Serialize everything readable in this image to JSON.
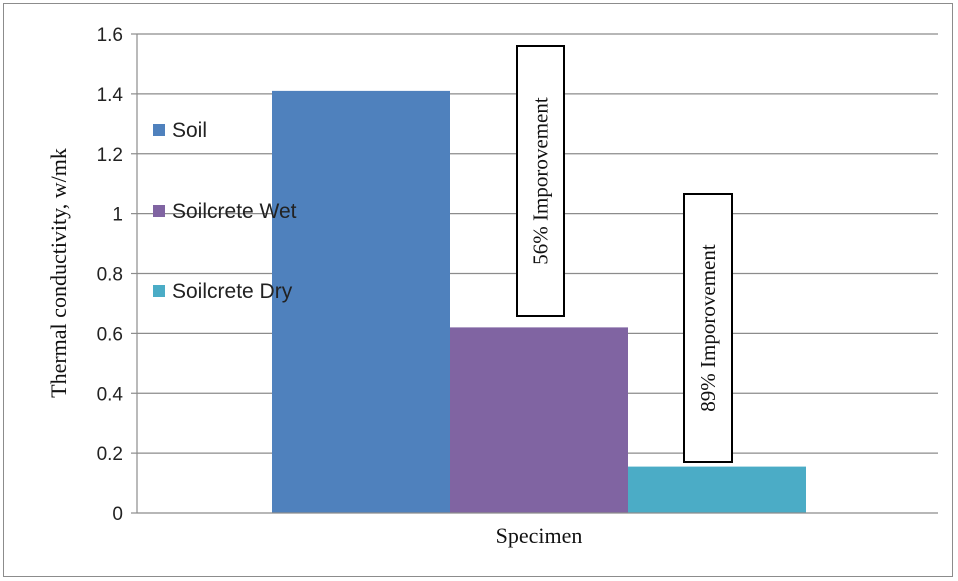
{
  "chart_data": {
    "type": "bar",
    "categories": [
      "Specimen"
    ],
    "series": [
      {
        "name": "Soil",
        "values": [
          1.41
        ],
        "color": "#4f81bd"
      },
      {
        "name": "Soilcrete Wet",
        "values": [
          0.62
        ],
        "color": "#8064a2"
      },
      {
        "name": "Soilcrete Dry",
        "values": [
          0.155
        ],
        "color": "#4bacc6"
      }
    ],
    "xlabel": "Specimen",
    "ylabel": "Thermal conductivity, w/mk",
    "ylim": [
      0,
      1.6
    ],
    "yticks": [
      "0",
      "0.2",
      "0.4",
      "0.6",
      "0.8",
      "1",
      "1.2",
      "1.4",
      "1.6"
    ],
    "grid": true,
    "legend_position": "left",
    "annotations": [
      {
        "text": "56% Imporovement",
        "series": "Soilcrete Wet"
      },
      {
        "text": "89% Imporovement",
        "series": "Soilcrete Dry"
      }
    ]
  }
}
